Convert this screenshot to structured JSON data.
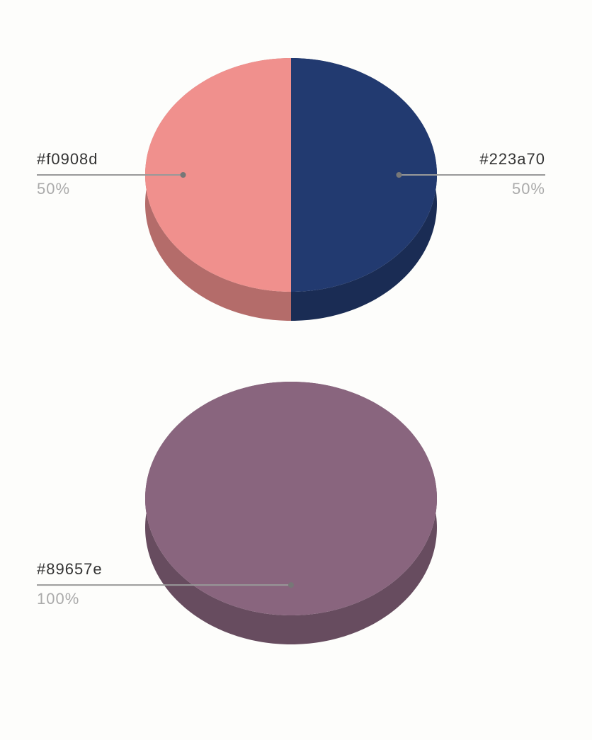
{
  "chart_data": [
    {
      "type": "pie",
      "categories": [
        "#f0908d",
        "#223a70"
      ],
      "values": [
        50,
        50
      ],
      "value_labels": [
        "50%",
        "50%"
      ],
      "colors": [
        "#f0908d",
        "#223a70"
      ]
    },
    {
      "type": "pie",
      "categories": [
        "#89657e"
      ],
      "values": [
        100
      ],
      "value_labels": [
        "100%"
      ],
      "colors": [
        "#89657e"
      ]
    }
  ]
}
